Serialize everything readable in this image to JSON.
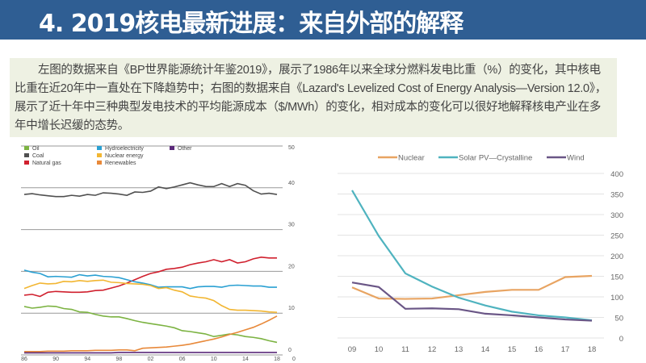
{
  "header": {
    "title": "4. 2019核电最新进展：来自外部的解释"
  },
  "description": "左图的数据来自《BP世界能源统计年鉴2019》，展示了1986年以来全球分燃料发电比重（%）的变化，其中核电比重在近20年中一直处在下降趋势中；右图的数据来自《Lazard's Levelized Cost of Energy Analysis—Version 12.0》，展示了近十年中三种典型发电技术的平均能源成本（$/MWh）的变化，相对成本的变化可以很好地解释核电产业在多年中增长迟缓的态势。",
  "chart_data": [
    {
      "type": "line",
      "x": [
        1986,
        1987,
        1988,
        1989,
        1990,
        1991,
        1992,
        1993,
        1994,
        1995,
        1996,
        1997,
        1998,
        1999,
        2000,
        2001,
        2002,
        2003,
        2004,
        2005,
        2006,
        2007,
        2008,
        2009,
        2010,
        2011,
        2012,
        2013,
        2014,
        2015,
        2016,
        2017,
        2018
      ],
      "xticks": [
        "86",
        "90",
        "94",
        "98",
        "02",
        "06",
        "10",
        "14",
        "18"
      ],
      "yticks": [
        "0",
        "10",
        "20",
        "30",
        "40",
        "50"
      ],
      "ylim": [
        0,
        50
      ],
      "grid": true,
      "legend": "top-left",
      "series": [
        {
          "name": "Oil",
          "color": "#7cb342",
          "values": [
            11.6,
            11.2,
            11.4,
            11.7,
            11.6,
            11.1,
            10.9,
            10.3,
            10.2,
            9.7,
            9.3,
            9.1,
            9.1,
            8.7,
            8.2,
            7.8,
            7.5,
            7.2,
            6.9,
            6.5,
            5.8,
            5.6,
            5.3,
            5.0,
            4.4,
            4.7,
            5.0,
            4.8,
            4.4,
            4.2,
            3.9,
            3.4,
            3.0
          ]
        },
        {
          "name": "Coal",
          "color": "#505050",
          "values": [
            38.4,
            38.6,
            38.3,
            38.1,
            37.9,
            37.9,
            38.2,
            38.0,
            38.4,
            38.2,
            38.8,
            38.7,
            38.5,
            38.2,
            39.0,
            38.9,
            39.2,
            40.2,
            39.8,
            40.2,
            40.7,
            41.2,
            40.7,
            40.3,
            40.3,
            41.0,
            40.3,
            41.0,
            40.6,
            39.3,
            38.5,
            38.7,
            38.4
          ]
        },
        {
          "name": "Natural gas",
          "color": "#d0202e",
          "values": [
            14.3,
            14.5,
            14.0,
            15.0,
            15.2,
            15.1,
            15.0,
            15.0,
            15.1,
            15.4,
            15.5,
            16.0,
            16.5,
            17.2,
            18.0,
            18.8,
            19.5,
            19.9,
            20.5,
            20.7,
            21.0,
            21.6,
            22.0,
            22.3,
            22.8,
            22.3,
            22.8,
            22.0,
            22.3,
            23.0,
            23.4,
            23.2,
            23.2
          ]
        },
        {
          "name": "Hydroelectricity",
          "color": "#2aa0d2",
          "values": [
            20.3,
            19.8,
            19.5,
            18.7,
            18.8,
            18.7,
            18.6,
            19.2,
            18.9,
            19.1,
            18.8,
            18.7,
            18.5,
            18.0,
            17.5,
            17.2,
            16.8,
            16.2,
            16.3,
            16.3,
            16.3,
            15.9,
            16.3,
            16.4,
            16.4,
            16.2,
            16.6,
            16.7,
            16.6,
            16.5,
            16.5,
            16.2,
            16.2
          ]
        },
        {
          "name": "Nuclear energy",
          "color": "#f2b632",
          "values": [
            15.9,
            16.6,
            17.2,
            17.0,
            17.1,
            17.6,
            17.5,
            17.8,
            17.6,
            17.8,
            17.9,
            17.4,
            17.3,
            17.1,
            17.0,
            16.9,
            16.6,
            15.9,
            16.1,
            15.5,
            15.1,
            14.1,
            13.8,
            13.6,
            13.0,
            11.8,
            10.9,
            10.7,
            10.7,
            10.6,
            10.5,
            10.3,
            10.2
          ]
        },
        {
          "name": "Renewables",
          "color": "#e8893a",
          "values": [
            0.8,
            0.8,
            0.8,
            0.9,
            0.9,
            0.9,
            1.0,
            1.0,
            1.0,
            1.1,
            1.1,
            1.1,
            1.2,
            1.2,
            1.0,
            1.6,
            1.7,
            1.8,
            1.9,
            2.1,
            2.3,
            2.6,
            3.0,
            3.4,
            3.8,
            4.3,
            4.9,
            5.4,
            6.0,
            6.6,
            7.4,
            8.3,
            9.3
          ]
        },
        {
          "name": "Other",
          "color": "#5b2a7a",
          "values": [
            0.5,
            0.5,
            0.5,
            0.5,
            0.5,
            0.5,
            0.5,
            0.5,
            0.5,
            0.5,
            0.5,
            0.5,
            0.6,
            0.6,
            0.6,
            0.6,
            0.6,
            0.6,
            0.6,
            0.6,
            0.6,
            0.6,
            0.6,
            0.6,
            0.6,
            0.6,
            0.6,
            0.6,
            0.6,
            0.6,
            0.6,
            0.6,
            0.6
          ]
        }
      ]
    },
    {
      "type": "line",
      "categories": [
        "09",
        "10",
        "11",
        "12",
        "13",
        "14",
        "15",
        "16",
        "17",
        "18"
      ],
      "yticks": [
        "0",
        "50",
        "100",
        "150",
        "200",
        "250",
        "300",
        "350",
        "400"
      ],
      "ylim": [
        0,
        400
      ],
      "grid": true,
      "legend": "top",
      "series": [
        {
          "name": "Nuclear",
          "color": "#e8a462",
          "values": [
            123,
            96,
            95,
            96,
            104,
            112,
            117,
            117,
            148,
            151
          ]
        },
        {
          "name": "Solar PV—Crystalline",
          "color": "#4fb3bf",
          "values": [
            359,
            248,
            157,
            125,
            98,
            79,
            64,
            55,
            50,
            43
          ]
        },
        {
          "name": "Wind",
          "color": "#6a5686",
          "values": [
            135,
            124,
            71,
            72,
            70,
            59,
            55,
            50,
            45,
            42
          ]
        }
      ]
    }
  ]
}
